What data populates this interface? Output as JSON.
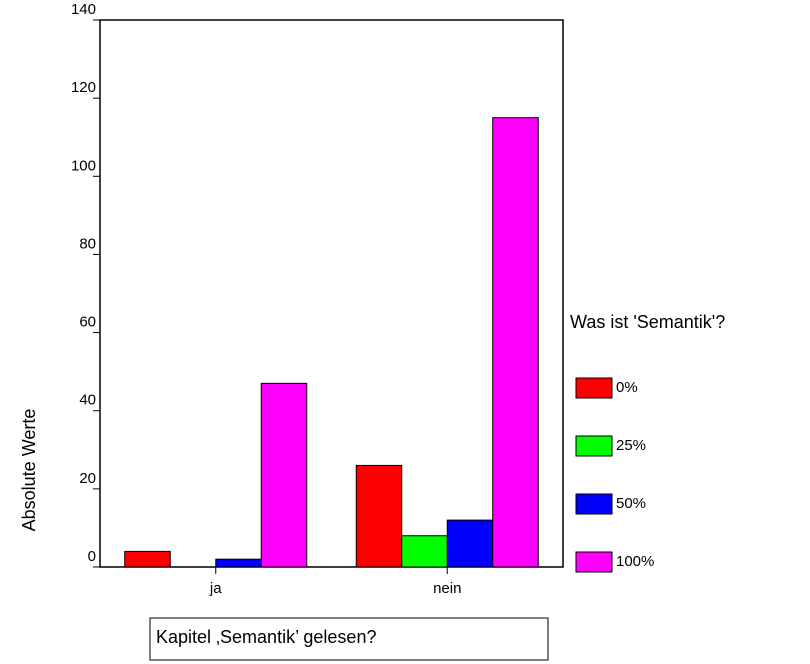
{
  "chart_data": {
    "type": "bar",
    "categories": [
      "ja",
      "nein"
    ],
    "series": [
      {
        "name": "0%",
        "color": "#ff0000",
        "values": [
          4,
          26
        ]
      },
      {
        "name": "25%",
        "color": "#00ff00",
        "values": [
          0,
          8
        ]
      },
      {
        "name": "50%",
        "color": "#0000ff",
        "values": [
          2,
          12
        ]
      },
      {
        "name": "100%",
        "color": "#ff00ff",
        "values": [
          47,
          115
        ]
      }
    ],
    "ylim": [
      0,
      140
    ],
    "yticks": [
      0,
      20,
      40,
      60,
      80,
      100,
      120,
      140
    ],
    "y_label": "Absolute Werte",
    "x_label": "Kapitel ‚Semantik’ gelesen?",
    "legend_title": "Was ist 'Semantik'?",
    "legend": "right"
  }
}
